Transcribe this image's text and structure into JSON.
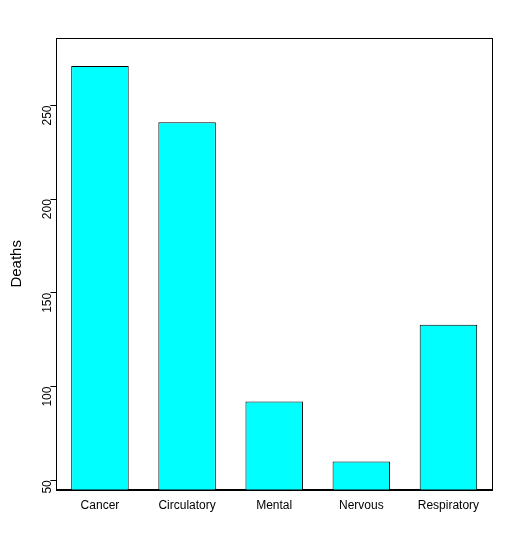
{
  "chart_data": {
    "type": "bar",
    "ylabel": "Deaths",
    "categories": [
      "Cancer",
      "Circulatory",
      "Mental",
      "Nervous",
      "Respiratory"
    ],
    "values": [
      271,
      241,
      92,
      60,
      133
    ],
    "color": "#00ffff",
    "ylim": [
      45,
      286
    ],
    "yticks": [
      50,
      100,
      150,
      200,
      250
    ],
    "grid": false
  }
}
